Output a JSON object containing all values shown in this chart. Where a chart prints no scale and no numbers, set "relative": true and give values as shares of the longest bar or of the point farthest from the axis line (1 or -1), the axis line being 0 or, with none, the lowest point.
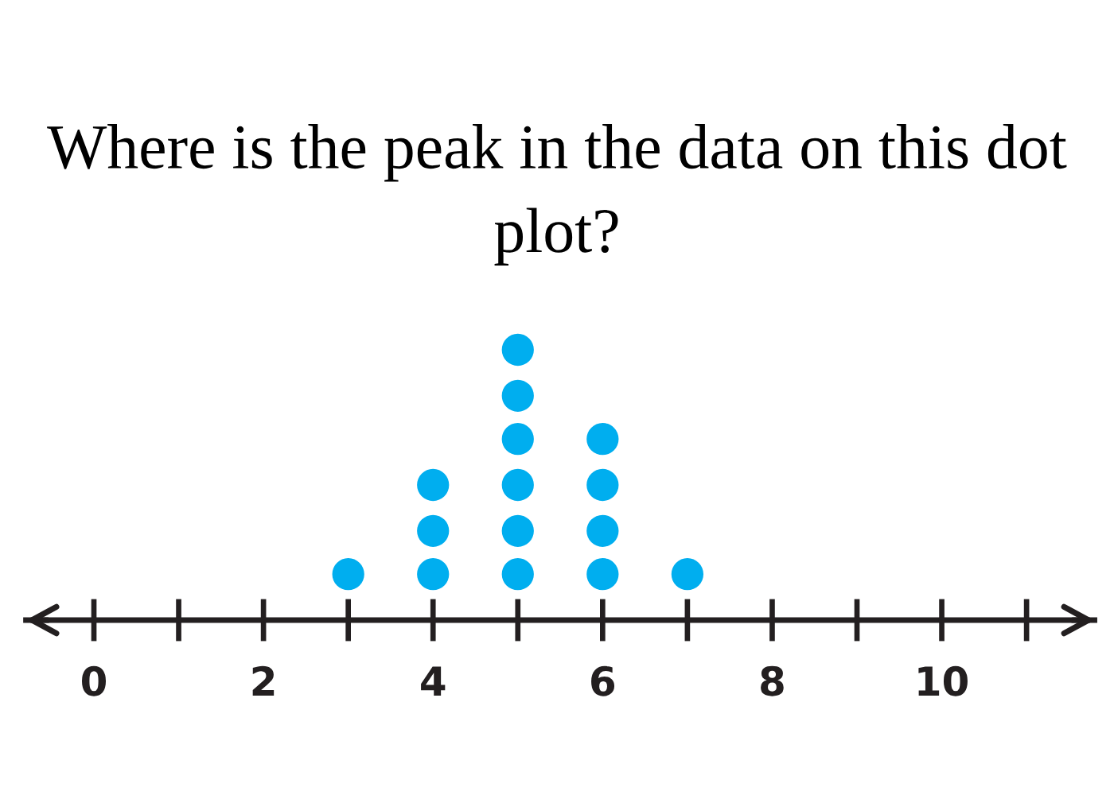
{
  "chart_data": {
    "type": "scatter",
    "title": "Where is the peak in the data on this dot plot?",
    "x": [
      3,
      4,
      4,
      4,
      5,
      5,
      5,
      5,
      5,
      5,
      6,
      6,
      6,
      6,
      7
    ],
    "values": [
      0.17,
      0.17,
      0.33,
      0.5,
      0.17,
      0.33,
      0.5,
      0.67,
      0.83,
      1,
      0.17,
      0.33,
      0.5,
      0.67,
      0.17
    ],
    "relative": true,
    "color": "#00aeef",
    "marker": "circle",
    "xlim": [
      -0.8,
      11.8
    ],
    "xticks": [
      0,
      {
        "value": 1,
        "label": null
      },
      2,
      {
        "value": 3,
        "label": null
      },
      4,
      {
        "value": 5,
        "label": null
      },
      6,
      {
        "value": 7,
        "label": null
      },
      8,
      {
        "value": 9,
        "label": null
      },
      10,
      {
        "value": 11,
        "label": null
      }
    ],
    "tick_labels": "x",
    "grid": false
  }
}
